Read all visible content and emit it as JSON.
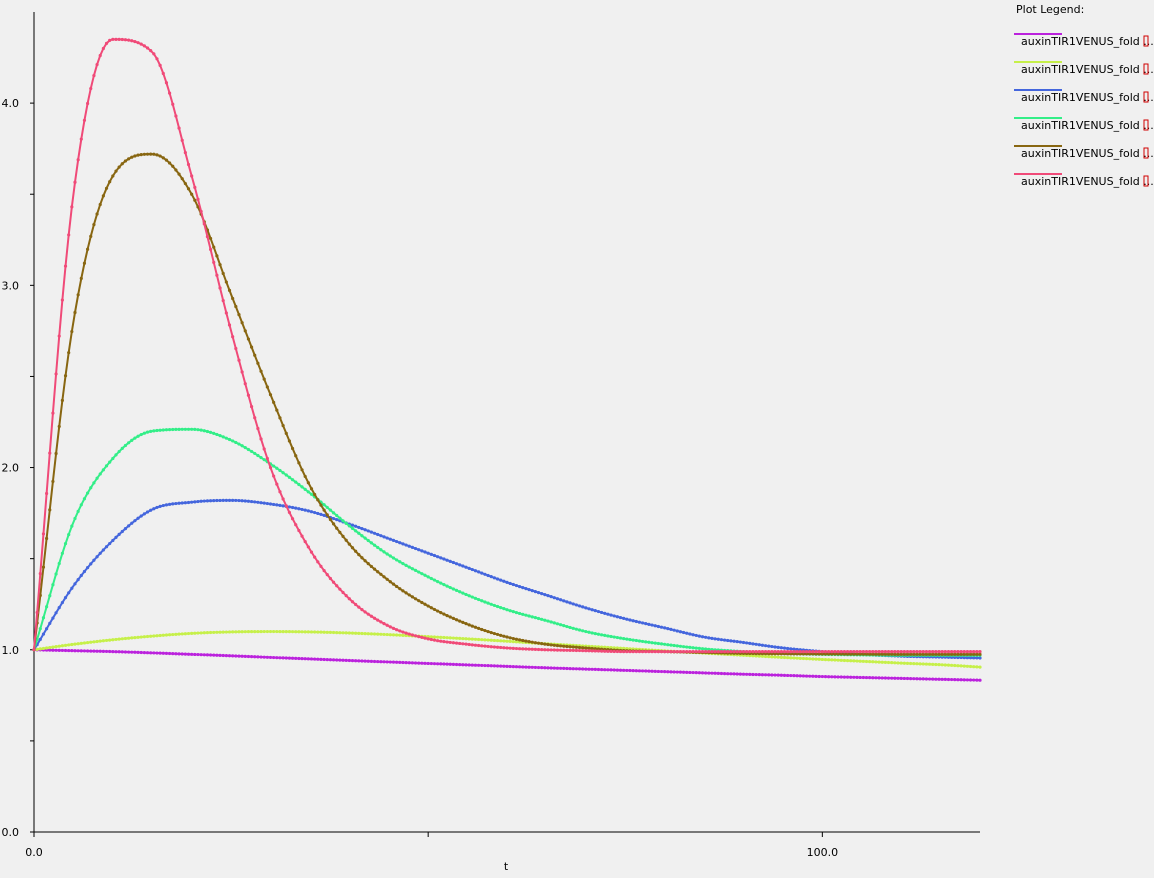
{
  "legend": {
    "title": "Plot Legend:",
    "placement": "top-right"
  },
  "chart_data": {
    "type": "line",
    "title": "",
    "xlabel": "t",
    "ylabel": "",
    "xlim": [
      0,
      120
    ],
    "ylim": [
      0,
      4.5
    ],
    "x_ticks": [
      {
        "value": 0,
        "label": "0.0"
      },
      {
        "value": 50,
        "label": ""
      },
      {
        "value": 100,
        "label": "100.0"
      }
    ],
    "y_ticks": [
      {
        "value": 0,
        "label": "0.0"
      },
      {
        "value": 0.5,
        "label": ""
      },
      {
        "value": 1,
        "label": "1.0"
      },
      {
        "value": 1.5,
        "label": ""
      },
      {
        "value": 2,
        "label": "2.0"
      },
      {
        "value": 2.5,
        "label": ""
      },
      {
        "value": 3,
        "label": "3.0"
      },
      {
        "value": 3.5,
        "label": ""
      },
      {
        "value": 4,
        "label": "4.0"
      }
    ],
    "x": [
      0,
      5,
      10,
      15,
      20,
      25,
      30,
      35,
      40,
      45,
      50,
      55,
      60,
      65,
      70,
      75,
      80,
      85,
      90,
      95,
      100,
      105,
      110,
      115,
      120
    ],
    "series": [
      {
        "name": "auxinTIR1VENUS_fold ...",
        "color": "#bb22dd",
        "values": [
          1.0,
          0.995,
          0.99,
          0.983,
          0.975,
          0.967,
          0.958,
          0.95,
          0.941,
          0.933,
          0.925,
          0.917,
          0.909,
          0.901,
          0.894,
          0.887,
          0.88,
          0.873,
          0.866,
          0.86,
          0.853,
          0.848,
          0.843,
          0.838,
          0.833
        ]
      },
      {
        "name": "auxinTIR1VENUS_fold ...",
        "color": "#c6f04a",
        "values": [
          1.0,
          1.03,
          1.055,
          1.075,
          1.09,
          1.098,
          1.1,
          1.098,
          1.092,
          1.083,
          1.072,
          1.06,
          1.047,
          1.033,
          1.02,
          1.007,
          0.994,
          0.982,
          0.97,
          0.958,
          0.947,
          0.937,
          0.927,
          0.918,
          0.905
        ]
      },
      {
        "name": "auxinTIR1VENUS_fold ...",
        "color": "#4466dd",
        "values": [
          1.0,
          1.35,
          1.6,
          1.77,
          1.81,
          1.82,
          1.8,
          1.76,
          1.69,
          1.61,
          1.53,
          1.45,
          1.37,
          1.3,
          1.23,
          1.17,
          1.12,
          1.07,
          1.04,
          1.01,
          0.99,
          0.975,
          0.965,
          0.96,
          0.955
        ]
      },
      {
        "name": "auxinTIR1VENUS_fold ...",
        "color": "#33ee88",
        "values": [
          1.0,
          1.7,
          2.05,
          2.2,
          2.21,
          2.15,
          2.02,
          1.86,
          1.68,
          1.52,
          1.4,
          1.3,
          1.22,
          1.16,
          1.1,
          1.06,
          1.03,
          1.005,
          0.99,
          0.98,
          0.975,
          0.972,
          0.97,
          0.97,
          0.97
        ]
      },
      {
        "name": "auxinTIR1VENUS_fold ...",
        "color": "#886611",
        "values": [
          1.0,
          2.8,
          3.6,
          3.72,
          3.5,
          2.95,
          2.4,
          1.9,
          1.58,
          1.38,
          1.24,
          1.14,
          1.07,
          1.03,
          1.01,
          0.995,
          0.99,
          0.985,
          0.98,
          0.978,
          0.977,
          0.976,
          0.975,
          0.975,
          0.975
        ]
      },
      {
        "name": "auxinTIR1VENUS_fold ...",
        "color": "#f04a78",
        "values": [
          1.0,
          3.5,
          4.35,
          4.28,
          3.6,
          2.75,
          2.0,
          1.55,
          1.28,
          1.13,
          1.06,
          1.03,
          1.01,
          1.0,
          0.995,
          0.99,
          0.99,
          0.99,
          0.99,
          0.99,
          0.99,
          0.99,
          0.99,
          0.99,
          0.99
        ]
      }
    ]
  }
}
